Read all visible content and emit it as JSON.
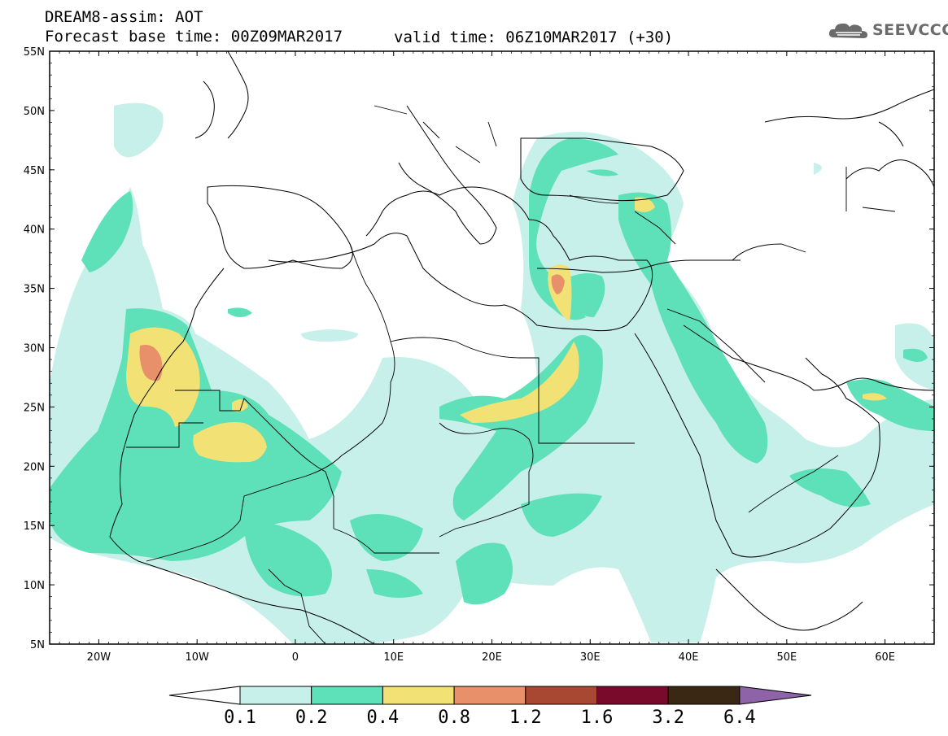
{
  "header": {
    "title": "DREAM8-assim: AOT",
    "base_time": "Forecast base time: 00Z09MAR2017",
    "valid_time": "valid time: 06Z10MAR2017 (+30)"
  },
  "logo": {
    "text": "SEEVCCC",
    "icon": "cloud-icon"
  },
  "map": {
    "lon_range": [
      -25,
      65
    ],
    "lat_range": [
      5,
      55
    ],
    "lat_ticks": [
      "55N",
      "50N",
      "45N",
      "40N",
      "35N",
      "30N",
      "25N",
      "20N",
      "15N",
      "10N",
      "5N"
    ],
    "lon_ticks": [
      "20W",
      "10W",
      "0",
      "10E",
      "20E",
      "30E",
      "40E",
      "50E",
      "60E"
    ]
  },
  "colorbar": {
    "labels": [
      "0.1",
      "0.2",
      "0.4",
      "0.8",
      "1.2",
      "1.6",
      "3.2",
      "6.4"
    ],
    "colors": [
      "#ffffff",
      "#c8f0ea",
      "#5ee0b8",
      "#f2e275",
      "#e8906a",
      "#a84832",
      "#7a0a2c",
      "#3a2714",
      "#8e63a8"
    ]
  }
}
